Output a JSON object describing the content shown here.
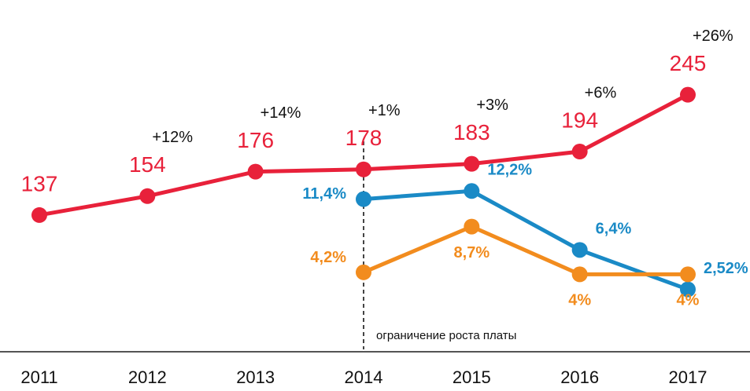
{
  "chart_data": {
    "type": "line",
    "categories": [
      "2011",
      "2012",
      "2013",
      "2014",
      "2015",
      "2016",
      "2017"
    ],
    "ylim": [
      20,
      330
    ],
    "y2lim": [
      -3,
      31
    ],
    "series": [
      {
        "name": null,
        "color": "#e8213a",
        "values": [
          137,
          154,
          176,
          178,
          183,
          194,
          245
        ],
        "growth_labels": [
          null,
          "+12%",
          "+14%",
          "+1%",
          "+3%",
          "+6%",
          "+26%"
        ]
      },
      {
        "name": null,
        "color": "#1a8ac6",
        "axis": "y2",
        "values": [
          null,
          null,
          null,
          11.4,
          12.2,
          6.4,
          2.52
        ],
        "value_labels": [
          null,
          null,
          null,
          "11,4%",
          "12,2%",
          "6,4%",
          "2,52%"
        ]
      },
      {
        "name": null,
        "color": "#f28c1e",
        "axis": "y2",
        "values": [
          null,
          null,
          null,
          4.2,
          8.7,
          4,
          4
        ],
        "value_labels": [
          null,
          null,
          null,
          "4,2%",
          "8,7%",
          "4%",
          "4%"
        ]
      }
    ],
    "annotations": [
      {
        "text": "ограничение роста платы",
        "x": "2014"
      }
    ]
  }
}
